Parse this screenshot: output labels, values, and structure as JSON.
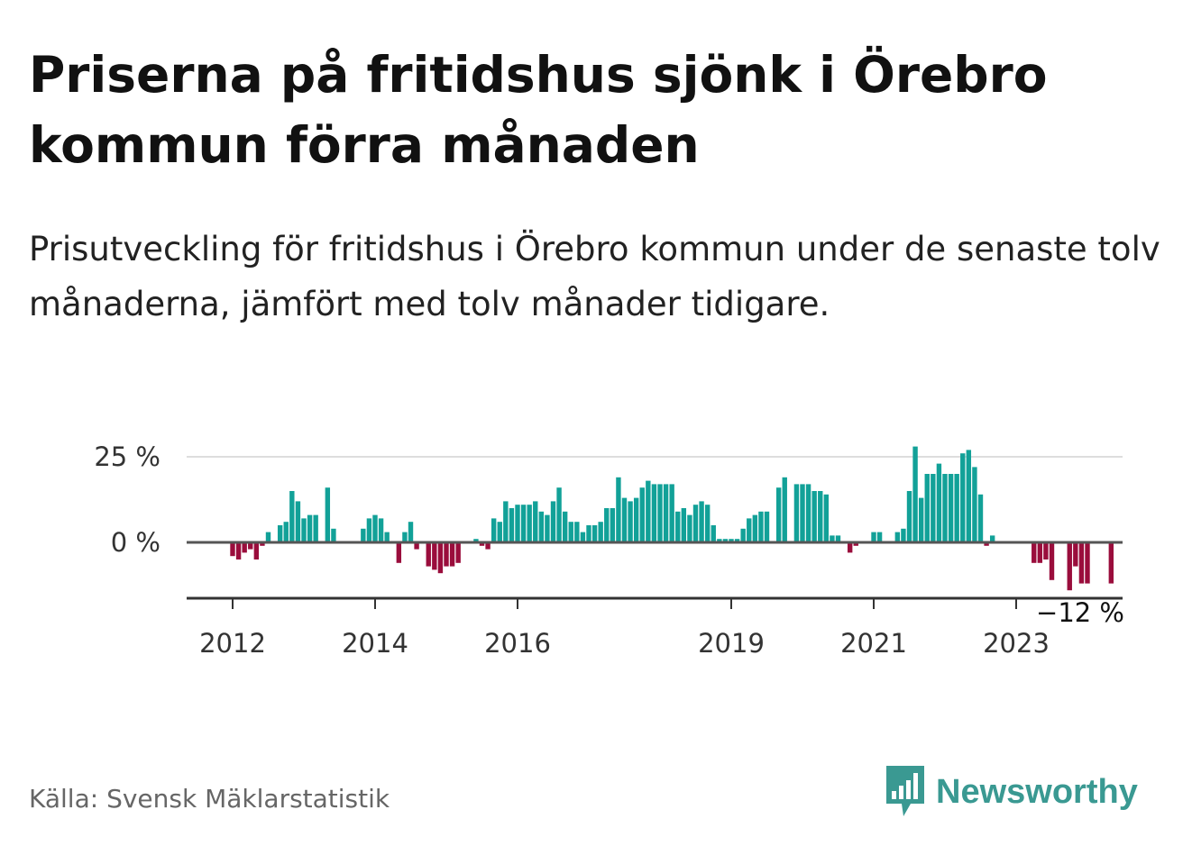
{
  "title": "Priserna på fritidshus sjönk i Örebro kommun förra månaden",
  "subtitle": "Prisutveckling för fritidshus i Örebro kommun under de senaste tolv månaderna, jämfört med tolv månader tidigare.",
  "source": "Källa: Svensk Mäklarstatistik",
  "brand": "Newsworthy",
  "colors": {
    "positive": "#12a198",
    "negative": "#9a0d3c",
    "brand": "#3a9992"
  },
  "chart_data": {
    "type": "bar",
    "ylabel": "",
    "xlabel": "",
    "ylim": [
      -16,
      28
    ],
    "yticks": [
      {
        "value": 0,
        "label": "0 %"
      },
      {
        "value": 25,
        "label": "25 %"
      }
    ],
    "xticks": [
      {
        "label": "2012",
        "index": 0
      },
      {
        "label": "2014",
        "index": 24
      },
      {
        "label": "2016",
        "index": 48
      },
      {
        "label": "2019",
        "index": 84
      },
      {
        "label": "2021",
        "index": 108
      },
      {
        "label": "2023",
        "index": 132
      }
    ],
    "start": "2012-01",
    "annotation": {
      "label": "−12 %",
      "index": 143
    },
    "values": [
      -4,
      -5,
      -3,
      -2,
      -5,
      -1,
      3,
      null,
      5,
      6,
      15,
      12,
      7,
      8,
      8,
      null,
      16,
      4,
      null,
      null,
      null,
      null,
      4,
      7,
      8,
      7,
      3,
      null,
      -6,
      3,
      6,
      -2,
      null,
      -7,
      -8,
      -9,
      -7,
      -7,
      -6,
      null,
      null,
      1,
      -1,
      -2,
      7,
      6,
      12,
      10,
      11,
      11,
      11,
      12,
      9,
      8,
      12,
      16,
      9,
      6,
      6,
      3,
      5,
      5,
      6,
      10,
      10,
      19,
      13,
      12,
      13,
      16,
      18,
      17,
      17,
      17,
      17,
      9,
      10,
      8,
      11,
      12,
      11,
      5,
      1,
      1,
      1,
      1,
      4,
      7,
      8,
      9,
      9,
      null,
      16,
      19,
      null,
      17,
      17,
      17,
      15,
      15,
      14,
      2,
      2,
      null,
      -3,
      -1,
      null,
      null,
      3,
      3,
      null,
      null,
      3,
      4,
      15,
      28,
      13,
      20,
      20,
      23,
      20,
      20,
      20,
      26,
      27,
      22,
      14,
      -1,
      2,
      null,
      null,
      null,
      null,
      null,
      null,
      -6,
      -6,
      -5,
      -11,
      null,
      null,
      -14,
      -7,
      -12,
      -12,
      null,
      null,
      null,
      -12
    ]
  }
}
